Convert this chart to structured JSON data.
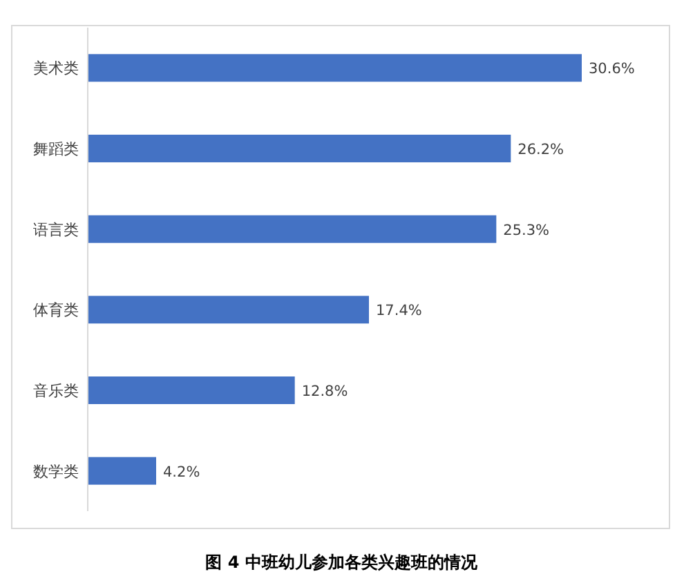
{
  "chart_data": {
    "type": "bar",
    "orientation": "horizontal",
    "title": "图 4 中班幼儿参加各类兴趣班的情况",
    "categories": [
      "美术类",
      "舞蹈类",
      "语言类",
      "体育类",
      "音乐类",
      "数学类"
    ],
    "values": [
      30.6,
      26.2,
      25.3,
      17.4,
      12.8,
      4.2
    ],
    "value_labels": [
      "30.6%",
      "26.2%",
      "25.3%",
      "17.4%",
      "12.8%",
      "4.2%"
    ],
    "color": "#4472c4"
  }
}
